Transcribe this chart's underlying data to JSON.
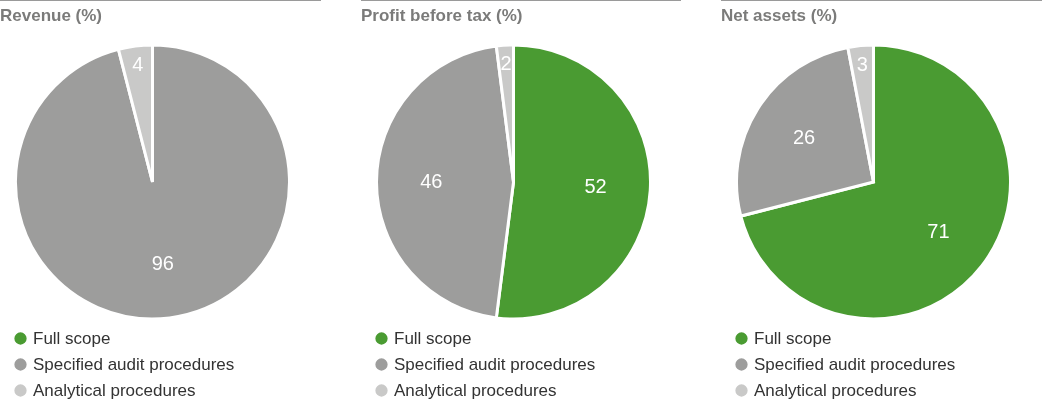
{
  "chart_data": [
    {
      "type": "pie",
      "title": "Revenue (%)",
      "categories": [
        "Full scope",
        "Specified audit procedures",
        "Analytical procedures"
      ],
      "values": [
        0,
        96,
        4
      ],
      "value_labels": [
        null,
        "96",
        "4"
      ],
      "colors": [
        "#4a9b32",
        "#9d9d9c",
        "#c9c9c8"
      ],
      "legend": "bottom"
    },
    {
      "type": "pie",
      "title": "Profit before tax (%)",
      "categories": [
        "Full scope",
        "Specified audit procedures",
        "Analytical procedures"
      ],
      "values": [
        52,
        46,
        2
      ],
      "value_labels": [
        "52",
        "46",
        "2"
      ],
      "colors": [
        "#4a9b32",
        "#9d9d9c",
        "#c9c9c8"
      ],
      "legend": "bottom"
    },
    {
      "type": "pie",
      "title": "Net assets (%)",
      "categories": [
        "Full scope",
        "Specified audit procedures",
        "Analytical procedures"
      ],
      "values": [
        71,
        26,
        3
      ],
      "value_labels": [
        "71",
        "26",
        "3"
      ],
      "colors": [
        "#4a9b32",
        "#9d9d9c",
        "#c9c9c8"
      ],
      "legend": "bottom"
    }
  ]
}
